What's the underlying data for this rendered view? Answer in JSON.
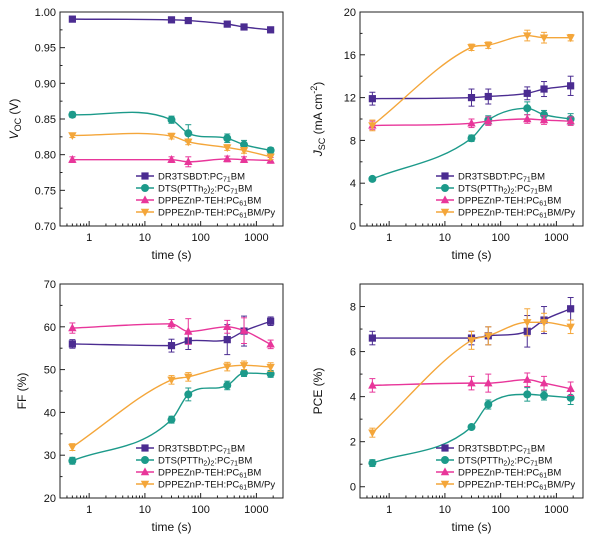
{
  "chart_data": [
    {
      "type": "line",
      "panel": "top-left",
      "xscale": "log",
      "xlim": [
        0.3,
        3000
      ],
      "xticks": [
        1,
        10,
        100,
        1000
      ],
      "xtick_labels": [
        "1",
        "10",
        "100",
        "1000"
      ],
      "ylim": [
        0.7,
        1.0
      ],
      "yticks": [
        0.7,
        0.75,
        0.8,
        0.85,
        0.9,
        0.95,
        1.0
      ],
      "ytick_labels": [
        "0.70",
        "0.75",
        "0.80",
        "0.85",
        "0.90",
        "0.95",
        "1.00"
      ],
      "xlabel": "time (s)",
      "ylabel": "VOC (V)",
      "ylabel_main": "V",
      "ylabel_sub": "OC",
      "ylabel_unit": " (V)",
      "legend_position": "lower-right",
      "series": [
        {
          "name": "DR3TSBDT:PC71BM",
          "name_main": "DR3TSBDT:PC",
          "name_sub": "71",
          "name_tail": "BM",
          "color": "#4b2c91",
          "marker": "square",
          "x": [
            0.5,
            30,
            60,
            300,
            600,
            1800
          ],
          "y": [
            0.99,
            0.989,
            0.988,
            0.983,
            0.979,
            0.975
          ],
          "err": [
            0.003,
            0.003,
            0.003,
            0.003,
            0.003,
            0.003
          ]
        },
        {
          "name": "DTS(PTTh2)2:PC71BM",
          "name_main": "DTS(PTTh",
          "name_sub": "2",
          "name_tail": ")",
          "name_sub2": "2",
          "name_tail2": ":PC",
          "name_sub3": "71",
          "name_tail3": "BM",
          "color": "#1c9a8a",
          "marker": "circle",
          "x": [
            0.5,
            30,
            60,
            300,
            600,
            1800
          ],
          "y": [
            0.856,
            0.849,
            0.83,
            0.823,
            0.814,
            0.806
          ],
          "err": [
            0.004,
            0.005,
            0.012,
            0.006,
            0.006,
            0.004
          ]
        },
        {
          "name": "DPPEZnP-TEH:PC61BM",
          "name_main": "DPPEZnP-TEH:PC",
          "name_sub": "61",
          "name_tail": "BM",
          "color": "#e8369a",
          "marker": "triangle-up",
          "x": [
            0.5,
            30,
            60,
            300,
            600,
            1800
          ],
          "y": [
            0.793,
            0.793,
            0.79,
            0.794,
            0.793,
            0.792
          ],
          "err": [
            0.004,
            0.004,
            0.007,
            0.004,
            0.004,
            0.004
          ]
        },
        {
          "name": "DPPEZnP-TEH:PC61BM/Py",
          "name_main": "DPPEZnP-TEH:PC",
          "name_sub": "61",
          "name_tail": "BM/Py",
          "color": "#f4a63a",
          "marker": "triangle-down",
          "x": [
            0.5,
            30,
            60,
            300,
            600,
            1800
          ],
          "y": [
            0.827,
            0.826,
            0.818,
            0.81,
            0.806,
            0.797
          ],
          "err": [
            0.003,
            0.004,
            0.004,
            0.004,
            0.004,
            0.004
          ]
        }
      ]
    },
    {
      "type": "line",
      "panel": "top-right",
      "xscale": "log",
      "xlim": [
        0.3,
        3000
      ],
      "xticks": [
        1,
        10,
        100,
        1000
      ],
      "xtick_labels": [
        "1",
        "10",
        "100",
        "1000"
      ],
      "ylim": [
        0,
        20
      ],
      "yticks": [
        0,
        4,
        8,
        12,
        16,
        20
      ],
      "ytick_labels": [
        "0",
        "4",
        "8",
        "12",
        "16",
        "20"
      ],
      "xlabel": "time (s)",
      "ylabel": "JSC (mA cm-2)",
      "ylabel_main": "J",
      "ylabel_sub": "SC",
      "ylabel_unit": " (mA cm",
      "ylabel_sup": "-2",
      "ylabel_close": ")",
      "legend_position": "lower-right",
      "series": [
        {
          "name": "DR3TSBDT:PC71BM",
          "name_main": "DR3TSBDT:PC",
          "name_sub": "71",
          "name_tail": "BM",
          "color": "#4b2c91",
          "marker": "square",
          "x": [
            0.5,
            30,
            60,
            300,
            600,
            1800
          ],
          "y": [
            11.9,
            12.0,
            12.1,
            12.4,
            12.8,
            13.1
          ],
          "err": [
            0.6,
            0.8,
            0.7,
            0.6,
            0.7,
            0.9
          ]
        },
        {
          "name": "DTS(PTTh2)2:PC71BM",
          "name_main": "DTS(PTTh",
          "name_sub": "2",
          "name_tail": ")",
          "name_sub2": "2",
          "name_tail2": ":PC",
          "name_sub3": "71",
          "name_tail3": "BM",
          "color": "#1c9a8a",
          "marker": "circle",
          "x": [
            0.5,
            30,
            60,
            300,
            600,
            1800
          ],
          "y": [
            4.4,
            8.2,
            9.9,
            11.0,
            10.4,
            10.0
          ],
          "err": [
            0.2,
            0.3,
            0.4,
            0.6,
            0.4,
            0.5
          ]
        },
        {
          "name": "DPPEZnP-TEH:PC61BM",
          "name_main": "DPPEZnP-TEH:PC",
          "name_sub": "61",
          "name_tail": "BM",
          "color": "#e8369a",
          "marker": "triangle-up",
          "x": [
            0.5,
            30,
            60,
            300,
            600,
            1800
          ],
          "y": [
            9.4,
            9.6,
            9.8,
            10.0,
            9.9,
            9.8
          ],
          "err": [
            0.4,
            0.4,
            0.4,
            0.4,
            0.4,
            0.4
          ]
        },
        {
          "name": "DPPEZnP-TEH:PC61BM/Py",
          "name_main": "DPPEZnP-TEH:PC",
          "name_sub": "61",
          "name_tail": "BM/Py",
          "color": "#f4a63a",
          "marker": "triangle-down",
          "x": [
            0.5,
            30,
            60,
            300,
            600,
            1800
          ],
          "y": [
            9.4,
            16.7,
            16.9,
            17.8,
            17.6,
            17.6
          ],
          "err": [
            0.5,
            0.3,
            0.3,
            0.5,
            0.5,
            0.3
          ]
        }
      ]
    },
    {
      "type": "line",
      "panel": "bottom-left",
      "xscale": "log",
      "xlim": [
        0.3,
        3000
      ],
      "xticks": [
        1,
        10,
        100,
        1000
      ],
      "xtick_labels": [
        "1",
        "10",
        "100",
        "1000"
      ],
      "ylim": [
        20,
        70
      ],
      "yticks": [
        20,
        30,
        40,
        50,
        60,
        70
      ],
      "ytick_labels": [
        "20",
        "30",
        "40",
        "50",
        "60",
        "70"
      ],
      "xlabel": "time (s)",
      "ylabel": "FF (%)",
      "legend_position": "lower-right",
      "series": [
        {
          "name": "DR3TSBDT:PC71BM",
          "name_main": "DR3TSBDT:PC",
          "name_sub": "71",
          "name_tail": "BM",
          "color": "#4b2c91",
          "marker": "square",
          "x": [
            0.5,
            30,
            60,
            300,
            600,
            1800
          ],
          "y": [
            56.0,
            55.6,
            56.7,
            57.0,
            59.0,
            61.3
          ],
          "err": [
            1.0,
            1.5,
            2.0,
            3.5,
            3.5,
            1.0
          ]
        },
        {
          "name": "DTS(PTTh2)2:PC71BM",
          "name_main": "DTS(PTTh",
          "name_sub": "2",
          "name_tail": ")",
          "name_sub2": "2",
          "name_tail2": ":PC",
          "name_sub3": "71",
          "name_tail3": "BM",
          "color": "#1c9a8a",
          "marker": "circle",
          "x": [
            0.5,
            30,
            60,
            300,
            600,
            1800
          ],
          "y": [
            28.7,
            38.3,
            44.2,
            46.3,
            49.2,
            49.0
          ],
          "err": [
            0.8,
            0.8,
            1.5,
            1.0,
            0.8,
            0.8
          ]
        },
        {
          "name": "DPPEZnP-TEH:PC61BM",
          "name_main": "DPPEZnP-TEH:PC",
          "name_sub": "61",
          "name_tail": "BM",
          "color": "#e8369a",
          "marker": "triangle-up",
          "x": [
            0.5,
            30,
            60,
            300,
            600,
            1800
          ],
          "y": [
            59.7,
            60.7,
            58.9,
            60.0,
            59.1,
            55.9
          ],
          "err": [
            1.2,
            1.0,
            3.0,
            1.5,
            3.0,
            1.0
          ]
        },
        {
          "name": "DPPEZnP-TEH:PC61BM/Py",
          "name_main": "DPPEZnP-TEH:PC",
          "name_sub": "61",
          "name_tail": "BM/Py",
          "color": "#f4a63a",
          "marker": "triangle-down",
          "x": [
            0.5,
            30,
            60,
            300,
            600,
            1800
          ],
          "y": [
            31.9,
            47.6,
            48.3,
            50.7,
            51.0,
            50.6
          ],
          "err": [
            0.8,
            1.0,
            1.0,
            1.0,
            1.0,
            1.0
          ]
        }
      ]
    },
    {
      "type": "line",
      "panel": "bottom-right",
      "xscale": "log",
      "xlim": [
        0.3,
        3000
      ],
      "xticks": [
        1,
        10,
        100,
        1000
      ],
      "xtick_labels": [
        "1",
        "10",
        "100",
        "1000"
      ],
      "ylim": [
        -0.5,
        9
      ],
      "yticks": [
        0,
        2,
        4,
        6,
        8
      ],
      "ytick_labels": [
        "0",
        "2",
        "4",
        "6",
        "8"
      ],
      "xlabel": "time (s)",
      "ylabel": "PCE (%)",
      "legend_position": "lower-right",
      "series": [
        {
          "name": "DR3TSBDT:PC71BM",
          "name_main": "DR3TSBDT:PC",
          "name_sub": "71",
          "name_tail": "BM",
          "color": "#4b2c91",
          "marker": "square",
          "x": [
            0.5,
            30,
            60,
            300,
            600,
            1800
          ],
          "y": [
            6.6,
            6.6,
            6.7,
            6.9,
            7.4,
            7.9
          ],
          "err": [
            0.3,
            0.3,
            0.4,
            0.7,
            0.6,
            0.5
          ]
        },
        {
          "name": "DTS(PTTh2)2:PC71BM",
          "name_main": "DTS(PTTh",
          "name_sub": "2",
          "name_tail": ")",
          "name_sub2": "2",
          "name_tail2": ":PC",
          "name_sub3": "71",
          "name_tail3": "BM",
          "color": "#1c9a8a",
          "marker": "circle",
          "x": [
            0.5,
            30,
            60,
            300,
            600,
            1800
          ],
          "y": [
            1.05,
            2.65,
            3.65,
            4.1,
            4.05,
            3.95
          ],
          "err": [
            0.15,
            0.1,
            0.2,
            0.3,
            0.2,
            0.3
          ]
        },
        {
          "name": "DPPEZnP-TEH:PC61BM",
          "name_main": "DPPEZnP-TEH:PC",
          "name_sub": "61",
          "name_tail": "BM",
          "color": "#e8369a",
          "marker": "triangle-up",
          "x": [
            0.5,
            30,
            60,
            300,
            600,
            1800
          ],
          "y": [
            4.5,
            4.6,
            4.6,
            4.75,
            4.6,
            4.35
          ],
          "err": [
            0.3,
            0.3,
            0.4,
            0.3,
            0.3,
            0.3
          ]
        },
        {
          "name": "DPPEZnP-TEH:PC61BM/Py",
          "name_main": "DPPEZnP-TEH:PC",
          "name_sub": "61",
          "name_tail": "BM/Py",
          "color": "#f4a63a",
          "marker": "triangle-down",
          "x": [
            0.5,
            30,
            60,
            300,
            600,
            1800
          ],
          "y": [
            2.4,
            6.5,
            6.7,
            7.3,
            7.3,
            7.1
          ],
          "err": [
            0.2,
            0.4,
            0.4,
            0.6,
            0.4,
            0.3
          ]
        }
      ]
    }
  ]
}
